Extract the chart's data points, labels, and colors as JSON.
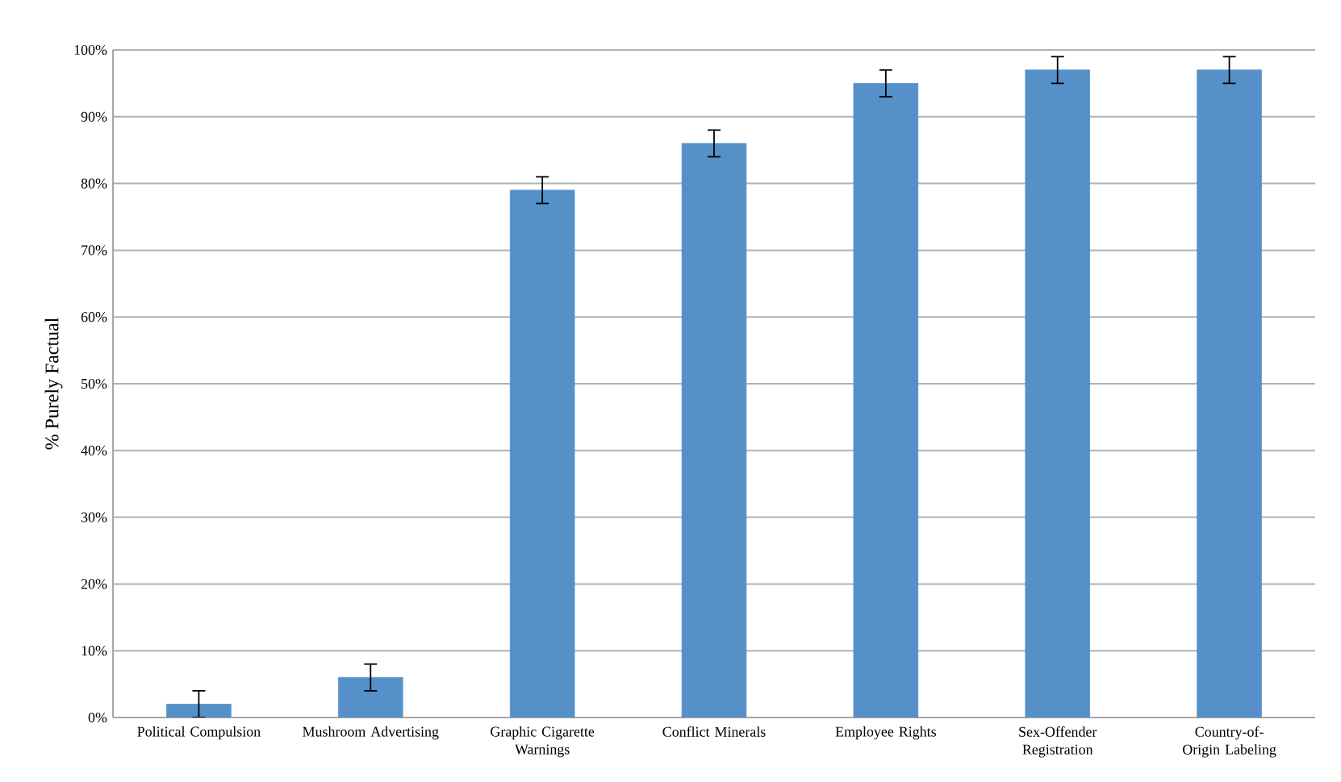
{
  "chart_data": {
    "type": "bar",
    "ylabel": "% Purely Factual",
    "categories": [
      "Political Compulsion",
      "Mushroom Advertising",
      "Graphic Cigarette Warnings",
      "Conflict Minerals",
      "Employee Rights",
      "Sex-Offender Registration",
      "Country-of-Origin Labeling"
    ],
    "values": [
      2,
      6,
      79,
      86,
      95,
      97,
      97
    ],
    "errors": [
      2,
      2,
      2,
      2,
      2,
      2,
      2
    ],
    "color": "#5590c8",
    "ylim": [
      0,
      100
    ],
    "yticks": [
      {
        "value": 0,
        "label": "0%"
      },
      {
        "value": 10,
        "label": "10%"
      },
      {
        "value": 20,
        "label": "20%"
      },
      {
        "value": 30,
        "label": "30%"
      },
      {
        "value": 40,
        "label": "40%"
      },
      {
        "value": 50,
        "label": "50%"
      },
      {
        "value": 60,
        "label": "60%"
      },
      {
        "value": 70,
        "label": "70%"
      },
      {
        "value": 80,
        "label": "80%"
      },
      {
        "value": 90,
        "label": "90%"
      },
      {
        "value": 100,
        "label": "100%"
      }
    ],
    "grid": "y"
  }
}
